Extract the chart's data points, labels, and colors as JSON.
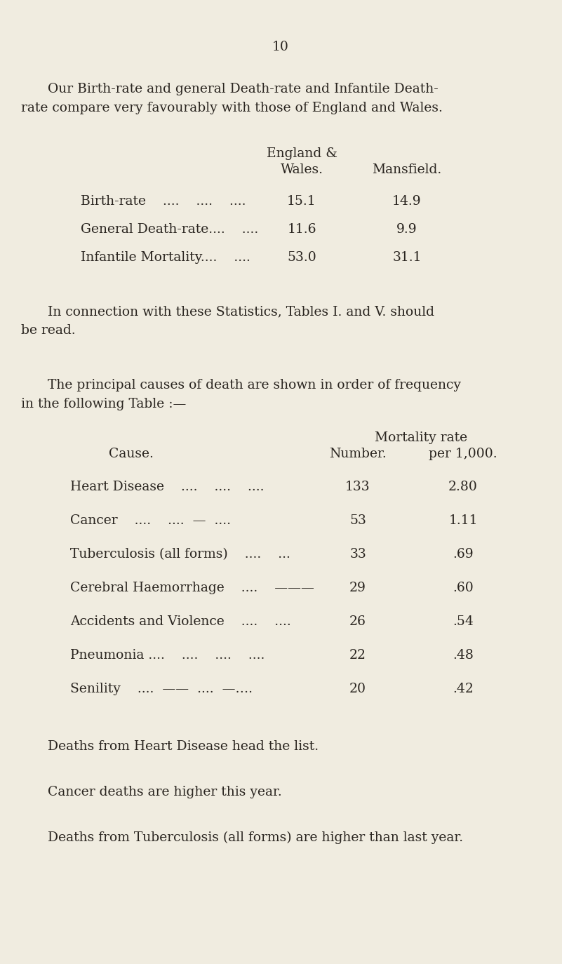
{
  "bg_color": "#f0ece0",
  "text_color": "#2a2520",
  "page_number": "10",
  "intro_line1": "Our Birth-rate and general Death-rate and Infantile Death-",
  "intro_line2": "rate compare very favourably with those of England and Wales.",
  "t1_h1": "England &",
  "t1_h2": "Wales.",
  "t1_h3": "Mansfield.",
  "t1_labels": [
    "Birth-rate    ....    ....    ....",
    "General Death-rate....    ....",
    "Infantile Mortality....    ...."
  ],
  "t1_ew": [
    "15.1",
    "11.6",
    "53.0"
  ],
  "t1_mans": [
    "14.9",
    "9.9",
    "31.1"
  ],
  "conn_line1": "In connection with these Statistics, Tables I. and V. should",
  "conn_line2": "be read.",
  "freq_line1": "The principal causes of death are shown in order of frequency",
  "freq_line2": "in the following Table :—",
  "t2_cause": "Cause.",
  "t2_number": "Number.",
  "t2_mort1": "Mortality rate",
  "t2_mort2": "per 1,000.",
  "t2_causes": [
    "Heart Disease    ....    ....    ....",
    "Cancer    ....    ....  —  ....",
    "Tuberculosis (all forms)    ....    ...",
    "Cerebral Haemorrhage    ....    ———",
    "Accidents and Violence    ....    ....",
    "Pneumonia ....    ....    ....    ....",
    "Senility    ....  ——  ....  —…."
  ],
  "t2_numbers": [
    "133",
    "53",
    "33",
    "29",
    "26",
    "22",
    "20"
  ],
  "t2_rates": [
    "2.80",
    "1.11",
    ".69",
    ".60",
    ".54",
    ".48",
    ".42"
  ],
  "footer1": "Deaths from Heart Disease head the list.",
  "footer2": "Cancer deaths are higher this year.",
  "footer3": "Deaths from Tuberculosis (all forms) are higher than last year."
}
